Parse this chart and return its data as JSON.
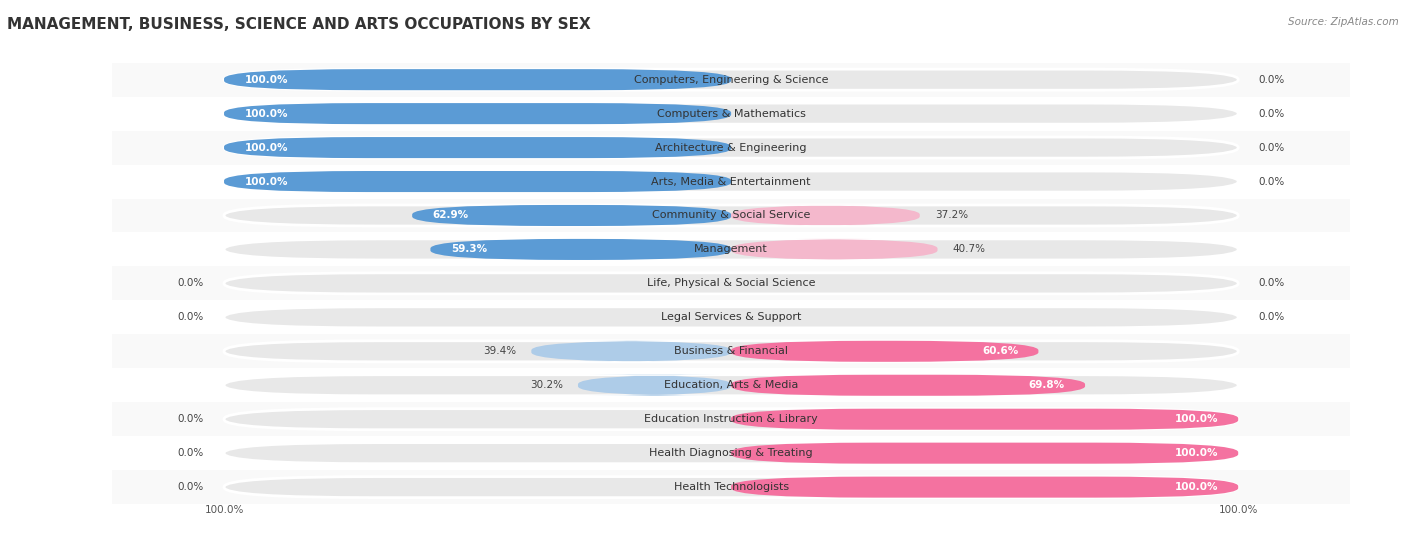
{
  "title": "MANAGEMENT, BUSINESS, SCIENCE AND ARTS OCCUPATIONS BY SEX",
  "source": "Source: ZipAtlas.com",
  "categories": [
    "Computers, Engineering & Science",
    "Computers & Mathematics",
    "Architecture & Engineering",
    "Arts, Media & Entertainment",
    "Community & Social Service",
    "Management",
    "Life, Physical & Social Science",
    "Legal Services & Support",
    "Business & Financial",
    "Education, Arts & Media",
    "Education Instruction & Library",
    "Health Diagnosing & Treating",
    "Health Technologists"
  ],
  "male": [
    100.0,
    100.0,
    100.0,
    100.0,
    62.9,
    59.3,
    0.0,
    0.0,
    39.4,
    30.2,
    0.0,
    0.0,
    0.0
  ],
  "female": [
    0.0,
    0.0,
    0.0,
    0.0,
    37.2,
    40.7,
    0.0,
    0.0,
    60.6,
    69.8,
    100.0,
    100.0,
    100.0
  ],
  "male_color": "#5b9bd5",
  "female_color": "#f472a0",
  "male_light_color": "#aecce8",
  "female_light_color": "#f4b8cc",
  "bar_bg_color": "#e8e8e8",
  "row_bg_even": "#f9f9f9",
  "row_bg_odd": "#ffffff",
  "title_fontsize": 11,
  "label_fontsize": 8,
  "value_fontsize": 7.5,
  "legend_fontsize": 8.5,
  "source_fontsize": 7.5
}
